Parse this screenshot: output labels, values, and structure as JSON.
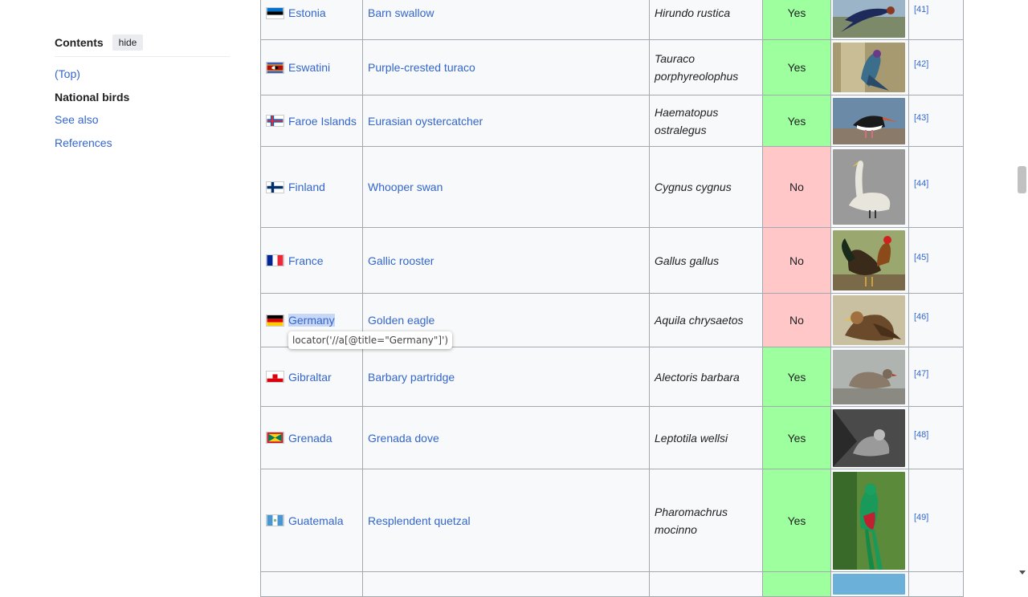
{
  "toc": {
    "title": "Contents",
    "hide_label": "hide",
    "items": [
      {
        "label": "(Top)"
      },
      {
        "label": "National birds"
      },
      {
        "label": "See also"
      },
      {
        "label": "References"
      }
    ]
  },
  "rows": [
    {
      "country": "Estonia",
      "bird": "Barn swallow",
      "scientific": "Hirundo rustica",
      "protected": "Yes",
      "ref": "[41]",
      "image": "barn-swallow-image"
    },
    {
      "country": "Eswatini",
      "bird": "Purple-crested turaco",
      "scientific": "Tauraco porphyreolophus",
      "protected": "Yes",
      "ref": "[42]",
      "image": "purple-crested-turaco-image"
    },
    {
      "country": "Faroe Islands",
      "bird": "Eurasian oystercatcher",
      "scientific": "Haematopus ostralegus",
      "protected": "Yes",
      "ref": "[43]",
      "image": "eurasian-oystercatcher-image"
    },
    {
      "country": "Finland",
      "bird": "Whooper swan",
      "scientific": "Cygnus cygnus",
      "protected": "No",
      "ref": "[44]",
      "image": "whooper-swan-image"
    },
    {
      "country": "France",
      "bird": "Gallic rooster",
      "scientific": "Gallus gallus",
      "protected": "No",
      "ref": "[45]",
      "image": "gallic-rooster-image"
    },
    {
      "country": "Germany",
      "bird": "Golden eagle",
      "scientific": "Aquila chrysaetos",
      "protected": "No",
      "ref": "[46]",
      "image": "golden-eagle-image"
    },
    {
      "country": "Gibraltar",
      "bird": "Barbary partridge",
      "scientific": "Alectoris barbara",
      "protected": "Yes",
      "ref": "[47]",
      "image": "barbary-partridge-image"
    },
    {
      "country": "Grenada",
      "bird": "Grenada dove",
      "scientific": "Leptotila wellsi",
      "protected": "Yes",
      "ref": "[48]",
      "image": "grenada-dove-image"
    },
    {
      "country": "Guatemala",
      "bird": "Resplendent quetzal",
      "scientific": "Pharomachrus mocinno",
      "protected": "Yes",
      "ref": "[49]",
      "image": "resplendent-quetzal-image"
    }
  ],
  "tooltip": {
    "text": "locator('//a[@title=\"Germany\"]')"
  },
  "colors": {
    "link": "#3366cc",
    "yes_bg": "#9eff9e",
    "no_bg": "#ffc7c7",
    "table_bg": "#f8f9fa",
    "border": "#a2a9b1"
  }
}
